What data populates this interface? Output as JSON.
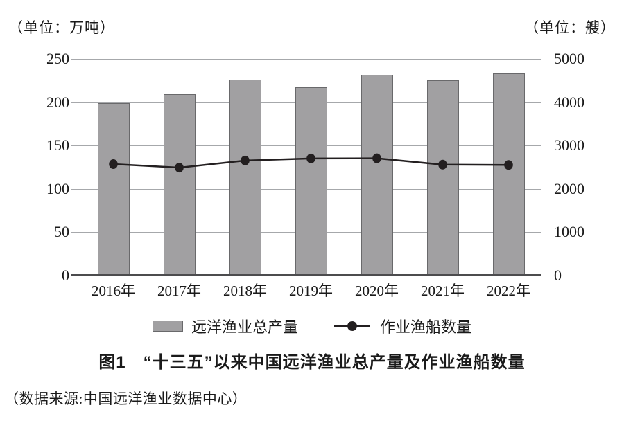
{
  "figure": {
    "units": {
      "left": "（单位：万吨）",
      "right": "（单位：艘）"
    },
    "caption": "图1　“十三五”以来中国远洋渔业总产量及作业渔船数量",
    "source": "（数据来源:中国远洋渔业数据中心）"
  },
  "legend": {
    "items": [
      {
        "label": "远洋渔业总产量",
        "symbol": "gray-bar-swatch"
      },
      {
        "label": "作业渔船数量",
        "symbol": "line-dot-symbol"
      }
    ]
  },
  "colors": {
    "bar_fill": "#a1a0a2",
    "bar_border": "#69696b",
    "line": "#231f20",
    "gridline": "#a6a8ab",
    "axis": "#4c4c4e",
    "text": "#1a1a1a"
  },
  "chart_data": {
    "type": "bar+line",
    "title": "图1　“十三五”以来中国远洋渔业总产量及作业渔船数量",
    "categories": [
      "2016年",
      "2017年",
      "2018年",
      "2019年",
      "2020年",
      "2021年",
      "2022年"
    ],
    "series": [
      {
        "name": "远洋渔业总产量",
        "type": "bar",
        "axis": "left",
        "unit": "万吨",
        "values": [
          199,
          209,
          226,
          217,
          232,
          225,
          233
        ]
      },
      {
        "name": "作业渔船数量",
        "type": "line",
        "axis": "right",
        "unit": "艘",
        "values": [
          2571,
          2491,
          2654,
          2701,
          2705,
          2559,
          2551
        ]
      }
    ],
    "left_axis": {
      "unit": "万吨",
      "ticks": [
        0,
        50,
        100,
        150,
        200,
        250
      ],
      "max": 250
    },
    "right_axis": {
      "unit": "艘",
      "ticks": [
        0,
        1000,
        2000,
        3000,
        4000,
        5000
      ],
      "max": 5000
    },
    "grid": true,
    "legend_position": "bottom",
    "source": "中国远洋渔业数据中心"
  }
}
